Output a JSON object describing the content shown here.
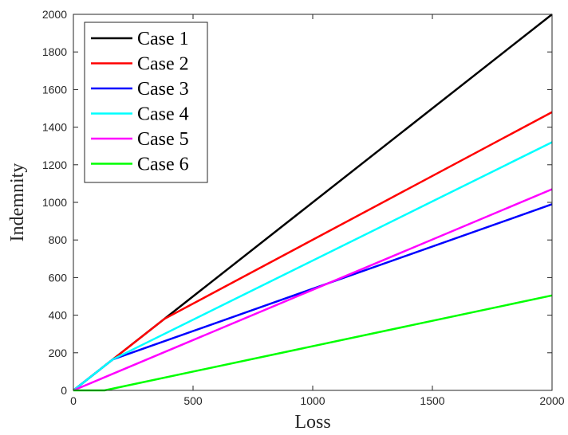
{
  "chart_data": {
    "type": "line",
    "xlabel": "Loss",
    "ylabel": "Indemnity",
    "xlim": [
      0,
      2000
    ],
    "ylim": [
      0,
      2000
    ],
    "xticks": [
      "0",
      "500",
      "1000",
      "1500",
      "2000"
    ],
    "yticks": [
      "0",
      "200",
      "400",
      "600",
      "800",
      "1000",
      "1200",
      "1400",
      "1600",
      "1800",
      "2000"
    ],
    "grid": false,
    "legend_position": "top-left",
    "series": [
      {
        "name": "Case 1",
        "color": "#000000",
        "x": [
          0,
          2000
        ],
        "y": [
          0,
          2000
        ]
      },
      {
        "name": "Case 2",
        "color": "#ff0000",
        "x": [
          0,
          380,
          2000
        ],
        "y": [
          0,
          380,
          1480
        ]
      },
      {
        "name": "Case 3",
        "color": "#0000ff",
        "x": [
          0,
          165,
          2000
        ],
        "y": [
          0,
          165,
          990
        ]
      },
      {
        "name": "Case 4",
        "color": "#00ffff",
        "x": [
          0,
          165,
          2000
        ],
        "y": [
          0,
          165,
          1320
        ]
      },
      {
        "name": "Case 5",
        "color": "#ff00ff",
        "x": [
          0,
          2000
        ],
        "y": [
          0,
          1070
        ]
      },
      {
        "name": "Case 6",
        "color": "#00ff00",
        "x": [
          0,
          130,
          2000
        ],
        "y": [
          0,
          0,
          505
        ]
      }
    ]
  }
}
